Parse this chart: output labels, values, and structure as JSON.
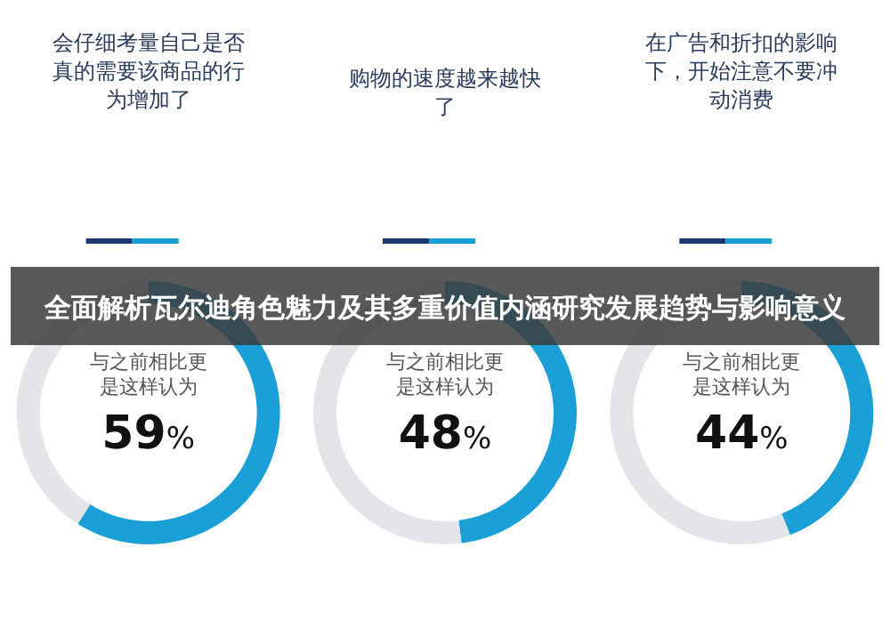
{
  "chart_data": [
    {
      "type": "donut",
      "title": "会仔细考量自己是否真的需要该商品的行为增加了",
      "subtitle": "与之前相比更是这样认为",
      "categories": [
        null,
        null
      ],
      "values": [
        59,
        41
      ],
      "colors": [
        "#1a9fd6",
        "#e4e5e8"
      ],
      "annotations": [
        "59%"
      ]
    },
    {
      "type": "donut",
      "title": "购物的速度越来越快了",
      "subtitle": "与之前相比更是这样认为",
      "categories": [
        null,
        null
      ],
      "values": [
        48,
        52
      ],
      "colors": [
        "#1a9fd6",
        "#e4e5e8"
      ],
      "annotations": [
        "48%"
      ]
    },
    {
      "type": "donut",
      "title": "在广告和折扣的影响下，开始注意不要冲动消费",
      "subtitle": "与之前相比更是这样认为",
      "categories": [
        null,
        null
      ],
      "values": [
        44,
        56
      ],
      "colors": [
        "#1a9fd6",
        "#e4e5e8"
      ],
      "annotations": [
        "44%"
      ]
    },
    {
      "type": "other",
      "title": "全面解析瓦尔迪角色魅力及其多重价值内涵研究发展趋势与影响意义"
    }
  ]
}
